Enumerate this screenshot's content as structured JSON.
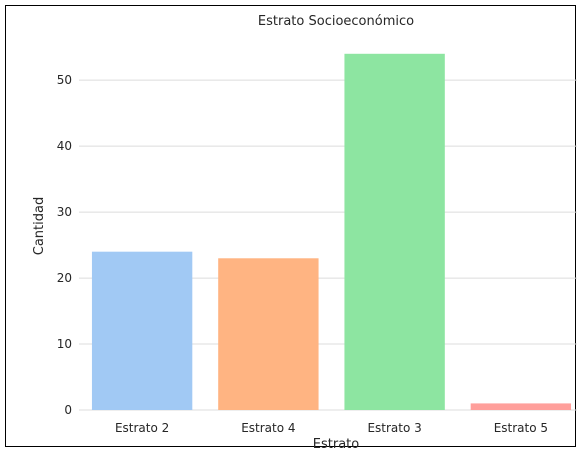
{
  "chart_data": {
    "type": "bar",
    "title": "Estrato Socioeconómico",
    "xlabel": "Estrato",
    "ylabel": "Cantidad",
    "categories": [
      "Estrato 2",
      "Estrato 4",
      "Estrato 3",
      "Estrato 5"
    ],
    "values": [
      24,
      23,
      54,
      1
    ],
    "colors": [
      "#a1c9f4",
      "#ffb482",
      "#8de5a1",
      "#ff9f9b"
    ],
    "ylim": [
      0,
      57
    ],
    "yticks": [
      0,
      10,
      20,
      30,
      40,
      50
    ],
    "grid": true,
    "legend": "none"
  }
}
